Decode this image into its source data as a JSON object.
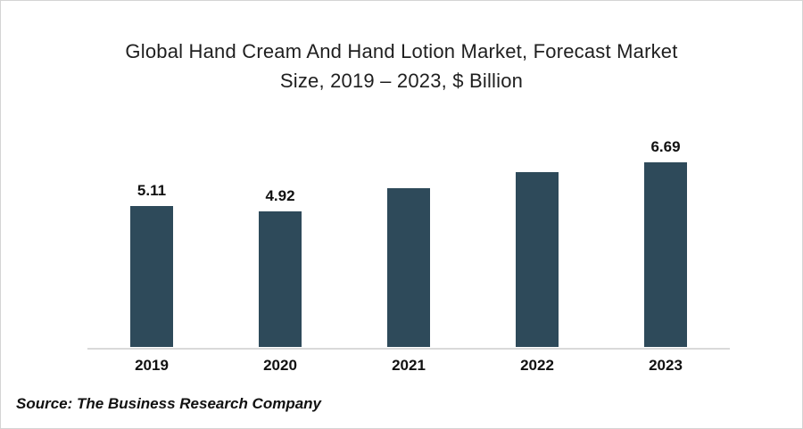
{
  "chart_data": {
    "type": "bar",
    "title": "Global Hand Cream And Hand Lotion Market, Forecast Market Size, 2019 – 2023, $ Billion",
    "title_lines": [
      "Global Hand Cream And Hand Lotion Market, Forecast Market",
      "Size, 2019 – 2023, $ Billion"
    ],
    "categories": [
      "2019",
      "2020",
      "2021",
      "2022",
      "2023"
    ],
    "values": [
      5.11,
      4.92,
      5.75,
      6.33,
      6.69
    ],
    "data_labels": [
      "5.11",
      "4.92",
      null,
      null,
      "6.69"
    ],
    "xlabel": "",
    "ylabel": "$ Billion",
    "ylim": [
      0,
      8.74
    ],
    "grid": false,
    "legend": false,
    "bar_color": "#2E4A5A",
    "axis_line_color": "#D9D9D9",
    "label_color": "#111111"
  },
  "source_note": "Source: The Business Research Company"
}
